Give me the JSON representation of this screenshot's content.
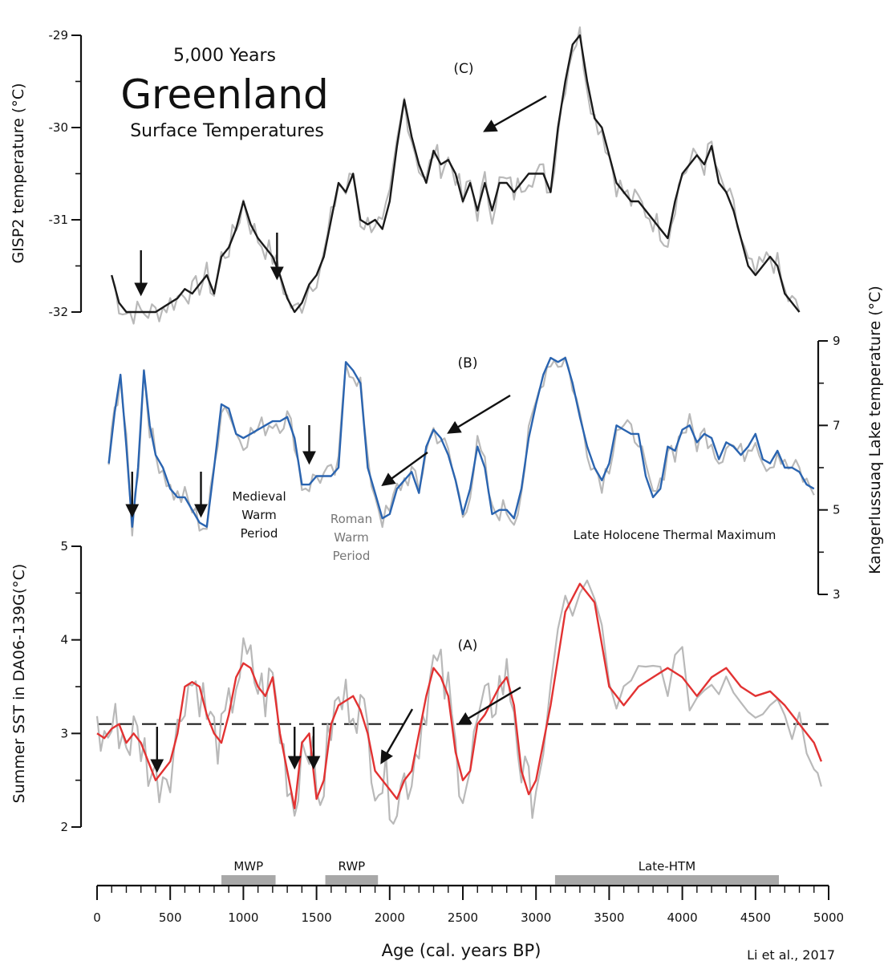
{
  "header": {
    "subtitle": "5,000 Years",
    "title": "Greenland",
    "subtitle2": "Surface Temperatures"
  },
  "citation": "Li et al., 2017",
  "panels": {
    "c": "(C)",
    "b": "(B)",
    "a": "(A)"
  },
  "periods": {
    "mwp_line1": "Medieval",
    "mwp_line2": "Warm",
    "mwp_line3": "Period",
    "rwp_line1": "Roman",
    "rwp_line2": "Warm",
    "rwp_line3": "Period",
    "lhtm": "Late Holocene Thermal Maximum"
  },
  "colors": {
    "panel_c": "#1a1a1a",
    "panel_b": "#2a64b0",
    "panel_a": "#e23232",
    "raw": "#b9b9b9",
    "bar": "#a8a8a8"
  },
  "chart_data": [
    {
      "type": "line",
      "panel": "(C)",
      "ylabel": "GISP2 temperature (°C)",
      "ylim": [
        -32,
        -29
      ],
      "yticks": [
        -29,
        -30,
        -31,
        -32
      ],
      "xlim": [
        0,
        4800
      ],
      "series": [
        {
          "x": [
            100,
            150,
            200,
            250,
            300,
            350,
            400,
            450,
            500,
            550,
            600,
            650,
            700,
            750,
            800,
            850,
            900,
            950,
            1000,
            1050,
            1100,
            1150,
            1200,
            1250,
            1300,
            1350,
            1400,
            1450,
            1500,
            1550,
            1600,
            1650,
            1700,
            1750,
            1800,
            1850,
            1900,
            1950,
            2000,
            2050,
            2100,
            2150,
            2200,
            2250,
            2300,
            2350,
            2400,
            2450,
            2500,
            2550,
            2600,
            2650,
            2700,
            2750,
            2800,
            2850,
            2900,
            2950,
            3000,
            3050,
            3100,
            3150,
            3200,
            3250,
            3300,
            3350,
            3400,
            3450,
            3500,
            3550,
            3600,
            3650,
            3700,
            3750,
            3800,
            3850,
            3900,
            3950,
            4000,
            4050,
            4100,
            4150,
            4200,
            4250,
            4300,
            4350,
            4400,
            4450,
            4500,
            4550,
            4600,
            4650,
            4700,
            4750,
            4800
          ],
          "values": [
            -31.6,
            -31.9,
            -32.0,
            -32.0,
            -32.0,
            -32.0,
            -32.0,
            -31.95,
            -31.9,
            -31.85,
            -31.75,
            -31.8,
            -31.7,
            -31.6,
            -31.8,
            -31.4,
            -31.3,
            -31.1,
            -30.8,
            -31.05,
            -31.2,
            -31.3,
            -31.4,
            -31.6,
            -31.85,
            -32.0,
            -31.9,
            -31.7,
            -31.6,
            -31.4,
            -31.0,
            -30.6,
            -30.7,
            -30.5,
            -31.0,
            -31.05,
            -31.0,
            -31.1,
            -30.8,
            -30.2,
            -29.7,
            -30.1,
            -30.4,
            -30.6,
            -30.25,
            -30.4,
            -30.35,
            -30.5,
            -30.8,
            -30.6,
            -30.9,
            -30.6,
            -30.9,
            -30.6,
            -30.6,
            -30.7,
            -30.6,
            -30.5,
            -30.5,
            -30.5,
            -30.7,
            -30.0,
            -29.5,
            -29.1,
            -29.0,
            -29.5,
            -29.9,
            -30.0,
            -30.3,
            -30.6,
            -30.7,
            -30.8,
            -30.8,
            -30.9,
            -31.0,
            -31.1,
            -31.2,
            -30.8,
            -30.5,
            -30.4,
            -30.3,
            -30.4,
            -30.2,
            -30.6,
            -30.7,
            -30.9,
            -31.2,
            -31.5,
            -31.6,
            -31.5,
            -31.4,
            -31.5,
            -31.8,
            -31.9,
            -32.0
          ]
        }
      ]
    },
    {
      "type": "line",
      "panel": "(B)",
      "ylabel": "Kangerlussuaq Lake temperature (°C)",
      "ylim": [
        3,
        9
      ],
      "yticks": [
        3,
        5,
        7,
        9
      ],
      "xlim": [
        0,
        4900
      ],
      "series": [
        {
          "x": [
            80,
            120,
            160,
            200,
            240,
            280,
            320,
            360,
            400,
            450,
            500,
            550,
            600,
            650,
            700,
            750,
            800,
            850,
            900,
            950,
            1000,
            1050,
            1100,
            1150,
            1200,
            1250,
            1300,
            1350,
            1400,
            1450,
            1500,
            1550,
            1600,
            1650,
            1700,
            1750,
            1800,
            1850,
            1900,
            1950,
            2000,
            2050,
            2100,
            2150,
            2200,
            2250,
            2300,
            2350,
            2400,
            2450,
            2500,
            2550,
            2600,
            2650,
            2700,
            2750,
            2800,
            2850,
            2900,
            2950,
            3000,
            3050,
            3100,
            3150,
            3200,
            3250,
            3300,
            3350,
            3400,
            3450,
            3500,
            3550,
            3600,
            3650,
            3700,
            3750,
            3800,
            3850,
            3900,
            3950,
            4000,
            4050,
            4100,
            4150,
            4200,
            4250,
            4300,
            4350,
            4400,
            4450,
            4500,
            4550,
            4600,
            4650,
            4700,
            4750,
            4800,
            4850,
            4900
          ],
          "values": [
            6.1,
            7.3,
            8.2,
            6.5,
            4.6,
            6.0,
            8.3,
            7.0,
            6.3,
            6.0,
            5.5,
            5.3,
            5.3,
            5.0,
            4.7,
            4.6,
            6.0,
            7.5,
            7.4,
            6.8,
            6.7,
            6.8,
            6.9,
            7.0,
            7.1,
            7.1,
            7.2,
            6.7,
            5.6,
            5.6,
            5.8,
            5.8,
            5.8,
            6.0,
            8.5,
            8.3,
            8.0,
            6.0,
            5.4,
            4.8,
            4.9,
            5.5,
            5.7,
            5.9,
            5.4,
            6.5,
            6.9,
            6.7,
            6.3,
            5.7,
            4.9,
            5.5,
            6.5,
            6.0,
            4.9,
            5.0,
            5.0,
            4.8,
            5.5,
            6.7,
            7.5,
            8.2,
            8.6,
            8.5,
            8.6,
            8.0,
            7.2,
            6.5,
            6.0,
            5.7,
            6.1,
            7.0,
            6.9,
            6.8,
            6.8,
            5.8,
            5.3,
            5.5,
            6.5,
            6.4,
            6.9,
            7.0,
            6.6,
            6.8,
            6.7,
            6.2,
            6.6,
            6.5,
            6.3,
            6.5,
            6.8,
            6.2,
            6.1,
            6.4,
            6.0,
            6.0,
            5.9,
            5.6,
            5.5
          ]
        }
      ]
    },
    {
      "type": "line",
      "panel": "(A)",
      "ylabel": "Summer SST in DA06-139G(°C)",
      "ylim": [
        2,
        5
      ],
      "yticks": [
        2,
        3,
        4,
        5
      ],
      "xlim": [
        0,
        5000
      ],
      "reference_line": 3.1,
      "series": [
        {
          "x": [
            0,
            50,
            100,
            150,
            200,
            250,
            300,
            350,
            400,
            450,
            500,
            550,
            600,
            650,
            700,
            750,
            800,
            850,
            900,
            950,
            1000,
            1050,
            1100,
            1150,
            1200,
            1250,
            1300,
            1350,
            1400,
            1450,
            1500,
            1550,
            1600,
            1650,
            1700,
            1750,
            1800,
            1850,
            1900,
            1950,
            2000,
            2050,
            2100,
            2150,
            2200,
            2250,
            2300,
            2350,
            2400,
            2450,
            2500,
            2550,
            2600,
            2650,
            2700,
            2750,
            2800,
            2850,
            2900,
            2950,
            3000,
            3100,
            3200,
            3300,
            3400,
            3500,
            3600,
            3700,
            3800,
            3900,
            4000,
            4100,
            4200,
            4300,
            4400,
            4500,
            4600,
            4700,
            4800,
            4900,
            4950
          ],
          "values": [
            3.0,
            2.95,
            3.05,
            3.1,
            2.9,
            3.0,
            2.9,
            2.7,
            2.5,
            2.6,
            2.7,
            3.0,
            3.5,
            3.55,
            3.5,
            3.2,
            3.0,
            2.9,
            3.2,
            3.6,
            3.75,
            3.7,
            3.5,
            3.4,
            3.6,
            3.0,
            2.6,
            2.2,
            2.9,
            3.0,
            2.3,
            2.5,
            3.1,
            3.3,
            3.35,
            3.4,
            3.25,
            3.0,
            2.6,
            2.5,
            2.4,
            2.3,
            2.5,
            2.6,
            3.0,
            3.4,
            3.7,
            3.6,
            3.4,
            2.8,
            2.5,
            2.6,
            3.1,
            3.2,
            3.35,
            3.5,
            3.6,
            3.3,
            2.6,
            2.35,
            2.5,
            3.3,
            4.3,
            4.6,
            4.4,
            3.5,
            3.3,
            3.5,
            3.6,
            3.7,
            3.6,
            3.4,
            3.6,
            3.7,
            3.5,
            3.4,
            3.45,
            3.3,
            3.1,
            2.9,
            2.7
          ]
        }
      ]
    }
  ],
  "x_axis": {
    "label": "Age (cal. years BP)",
    "ticks": [
      "0",
      "500",
      "1000",
      "1500",
      "2000",
      "2500",
      "3000",
      "3500",
      "4000",
      "4500",
      "5000"
    ]
  },
  "bars": [
    {
      "label": "MWP",
      "start": 850,
      "end": 1220
    },
    {
      "label": "RWP",
      "start": 1560,
      "end": 1920
    },
    {
      "label": "Late-HTM",
      "start": 3130,
      "end": 4660
    }
  ]
}
